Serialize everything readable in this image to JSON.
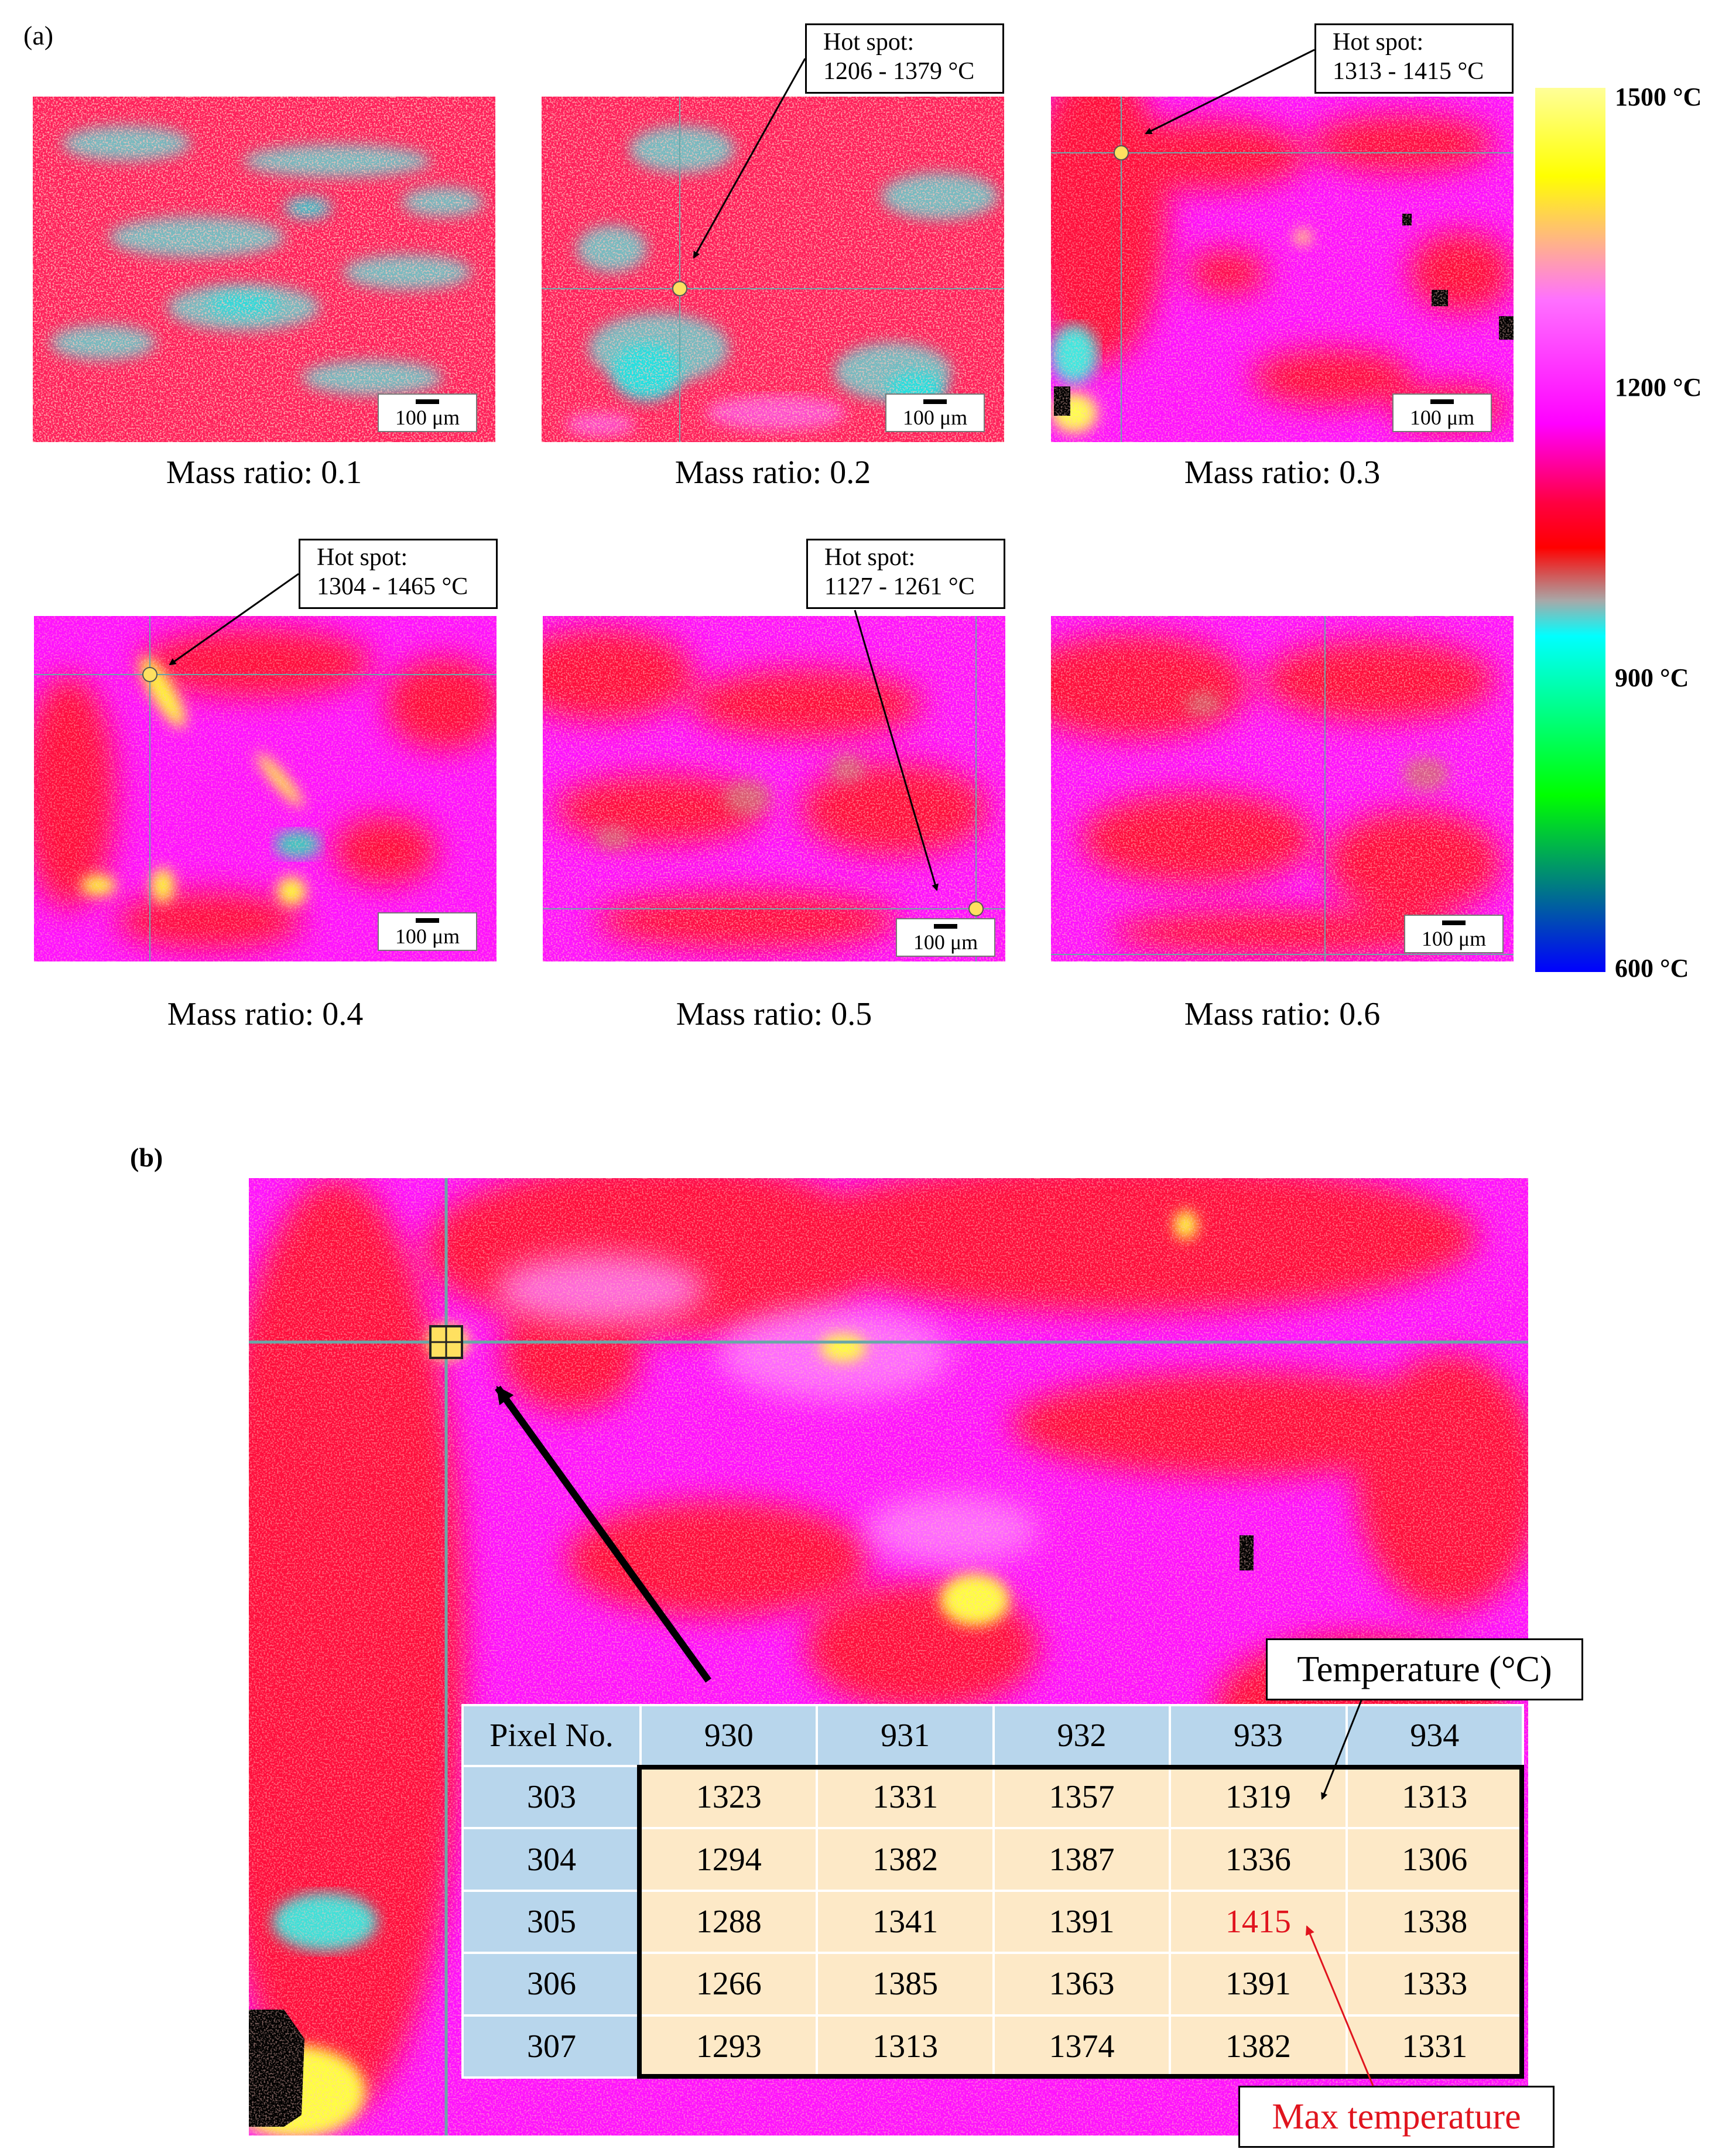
{
  "panel_a": {
    "label": "(a)",
    "maps": [
      {
        "caption": "Mass ratio: 0.1",
        "scale": "100 μm"
      },
      {
        "caption": "Mass ratio: 0.2",
        "scale": "100 μm"
      },
      {
        "caption": "Mass ratio: 0.3",
        "scale": "100 μm"
      },
      {
        "caption": "Mass ratio: 0.4",
        "scale": "100 μm"
      },
      {
        "caption": "Mass ratio: 0.5",
        "scale": "100 μm"
      },
      {
        "caption": "Mass ratio: 0.6",
        "scale": "100 μm"
      }
    ],
    "hotspots": [
      {
        "title": "Hot spot:",
        "range": "1206 - 1379 °C"
      },
      {
        "title": "Hot spot:",
        "range": "1313 - 1415 °C"
      },
      {
        "title": "Hot spot:",
        "range": "1304 - 1465 °C"
      },
      {
        "title": "Hot spot:",
        "range": "1127 - 1261 °C"
      }
    ],
    "colorbar": {
      "ticks": [
        "1500 °C",
        "1200 °C",
        "900 °C",
        "600 °C"
      ],
      "colors": [
        "#ffff99",
        "#ffff00",
        "#ff66ff",
        "#ff00ff",
        "#ff0040",
        "#ff0000",
        "#a0a0a0",
        "#00ffff",
        "#00ff00",
        "#0000ff"
      ]
    }
  },
  "panel_b": {
    "label": "(b)",
    "temp_label": "Temperature (°C)",
    "max_label": "Max temperature",
    "table": {
      "corner": "Pixel No.",
      "columns": [
        "930",
        "931",
        "932",
        "933",
        "934"
      ],
      "rows": [
        {
          "pixel": "303",
          "values": [
            "1323",
            "1331",
            "1357",
            "1319",
            "1313"
          ]
        },
        {
          "pixel": "304",
          "values": [
            "1294",
            "1382",
            "1387",
            "1336",
            "1306"
          ]
        },
        {
          "pixel": "305",
          "values": [
            "1288",
            "1341",
            "1391",
            "1415",
            "1338"
          ]
        },
        {
          "pixel": "306",
          "values": [
            "1266",
            "1385",
            "1363",
            "1391",
            "1333"
          ]
        },
        {
          "pixel": "307",
          "values": [
            "1293",
            "1313",
            "1374",
            "1382",
            "1331"
          ]
        }
      ]
    }
  }
}
